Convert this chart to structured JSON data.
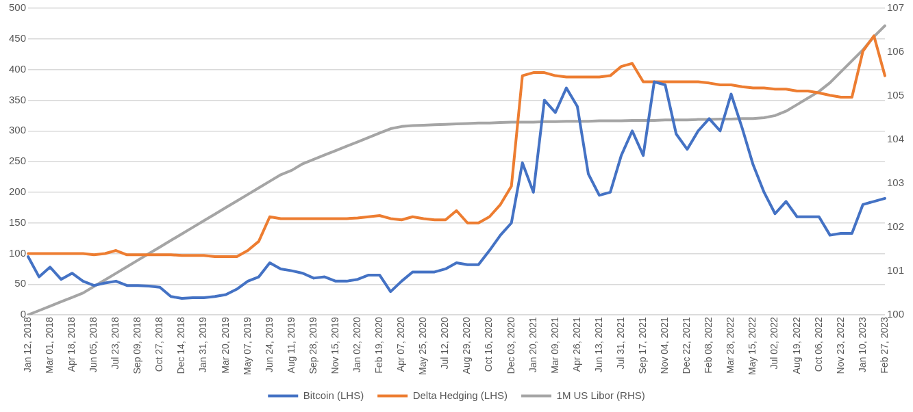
{
  "chart_data": {
    "type": "line",
    "categories": [
      "Jan 12, 2018",
      null,
      "Mar 01, 2018",
      null,
      "Apr 18, 2018",
      null,
      "Jun 05, 2018",
      null,
      "Jul 23, 2018",
      null,
      "Sep 09, 2018",
      null,
      "Oct 27, 2018",
      null,
      "Dec 14, 2018",
      null,
      "Jan 31, 2019",
      null,
      "Mar 20, 2019",
      null,
      "May 07, 2019",
      null,
      "Jun 24, 2019",
      null,
      "Aug 11, 2019",
      null,
      "Sep 28, 2019",
      null,
      "Nov 15, 2019",
      null,
      "Jan 02, 2020",
      null,
      "Feb 19, 2020",
      null,
      "Apr 07, 2020",
      null,
      "May 25, 2020",
      null,
      "Jul 12, 2020",
      null,
      "Aug 29, 2020",
      null,
      "Oct 16, 2020",
      null,
      "Dec 03, 2020",
      null,
      "Jan 20, 2021",
      null,
      "Mar 09, 2021",
      null,
      "Apr 26, 2021",
      null,
      "Jun 13, 2021",
      null,
      "Jul 31, 2021",
      null,
      "Sep 17, 2021",
      null,
      "Nov 04, 2021",
      null,
      "Dec 22, 2021",
      null,
      "Feb 08, 2022",
      null,
      "Mar 28, 2022",
      null,
      "May 15, 2022",
      null,
      "Jul 02, 2022",
      null,
      "Aug 19, 2022",
      null,
      "Oct 06, 2022",
      null,
      "Nov 23, 2022",
      null,
      "Jan 10, 2023",
      null,
      "Feb 27, 2023"
    ],
    "series": [
      {
        "name": "Bitcoin (LHS)",
        "color": "#4472c4",
        "values": [
          95,
          62,
          78,
          58,
          68,
          55,
          48,
          52,
          55,
          48,
          48,
          47,
          45,
          30,
          27,
          28,
          28,
          30,
          33,
          42,
          55,
          62,
          85,
          75,
          72,
          68,
          60,
          62,
          55,
          55,
          58,
          65,
          65,
          38,
          55,
          70,
          70,
          70,
          75,
          85,
          82,
          82,
          105,
          130,
          150,
          248,
          200,
          350,
          330,
          370,
          340,
          230,
          195,
          200,
          260,
          300,
          260,
          380,
          375,
          295,
          270,
          300,
          320,
          300,
          360,
          305,
          245,
          200,
          165,
          185,
          160,
          160,
          160,
          130,
          133,
          133,
          180,
          185,
          190
        ]
      },
      {
        "name": "Delta Hedging (LHS)",
        "color": "#ed7d31",
        "values": [
          100,
          100,
          100,
          100,
          100,
          100,
          98,
          100,
          105,
          98,
          98,
          98,
          98,
          98,
          97,
          97,
          97,
          95,
          95,
          95,
          105,
          120,
          160,
          157,
          157,
          157,
          157,
          157,
          157,
          157,
          158,
          160,
          162,
          157,
          155,
          160,
          157,
          155,
          155,
          170,
          150,
          150,
          160,
          180,
          210,
          390,
          395,
          395,
          390,
          388,
          388,
          388,
          388,
          390,
          405,
          410,
          380,
          380,
          380,
          380,
          380,
          380,
          378,
          375,
          375,
          372,
          370,
          370,
          368,
          368,
          365,
          365,
          362,
          358,
          355,
          355,
          430,
          455,
          390
        ]
      },
      {
        "name": "1M US Libor (RHS)",
        "color": "#a5a5a5",
        "axis": "y2",
        "values": [
          100.0,
          100.1,
          100.2,
          100.3,
          100.4,
          100.5,
          100.65,
          100.8,
          100.95,
          101.1,
          101.25,
          101.4,
          101.55,
          101.7,
          101.85,
          102.0,
          102.15,
          102.3,
          102.45,
          102.6,
          102.75,
          102.9,
          103.05,
          103.2,
          103.3,
          103.45,
          103.55,
          103.65,
          103.75,
          103.85,
          103.95,
          104.05,
          104.15,
          104.25,
          104.3,
          104.32,
          104.33,
          104.34,
          104.35,
          104.36,
          104.37,
          104.38,
          104.38,
          104.39,
          104.4,
          104.4,
          104.4,
          104.41,
          104.41,
          104.42,
          104.42,
          104.42,
          104.43,
          104.43,
          104.43,
          104.44,
          104.44,
          104.44,
          104.45,
          104.45,
          104.45,
          104.46,
          104.46,
          104.47,
          104.47,
          104.48,
          104.48,
          104.5,
          104.55,
          104.65,
          104.8,
          104.95,
          105.1,
          105.3,
          105.55,
          105.8,
          106.05,
          106.35,
          106.6
        ]
      }
    ],
    "ylim": [
      0,
      500
    ],
    "yticks": [
      0,
      50,
      100,
      150,
      200,
      250,
      300,
      350,
      400,
      450,
      500
    ],
    "y2lim": [
      100,
      107
    ],
    "y2ticks": [
      100,
      101,
      102,
      103,
      104,
      105,
      106,
      107
    ],
    "grid": "y",
    "legend": "bottom",
    "marker": "none",
    "line_style": "solid"
  }
}
